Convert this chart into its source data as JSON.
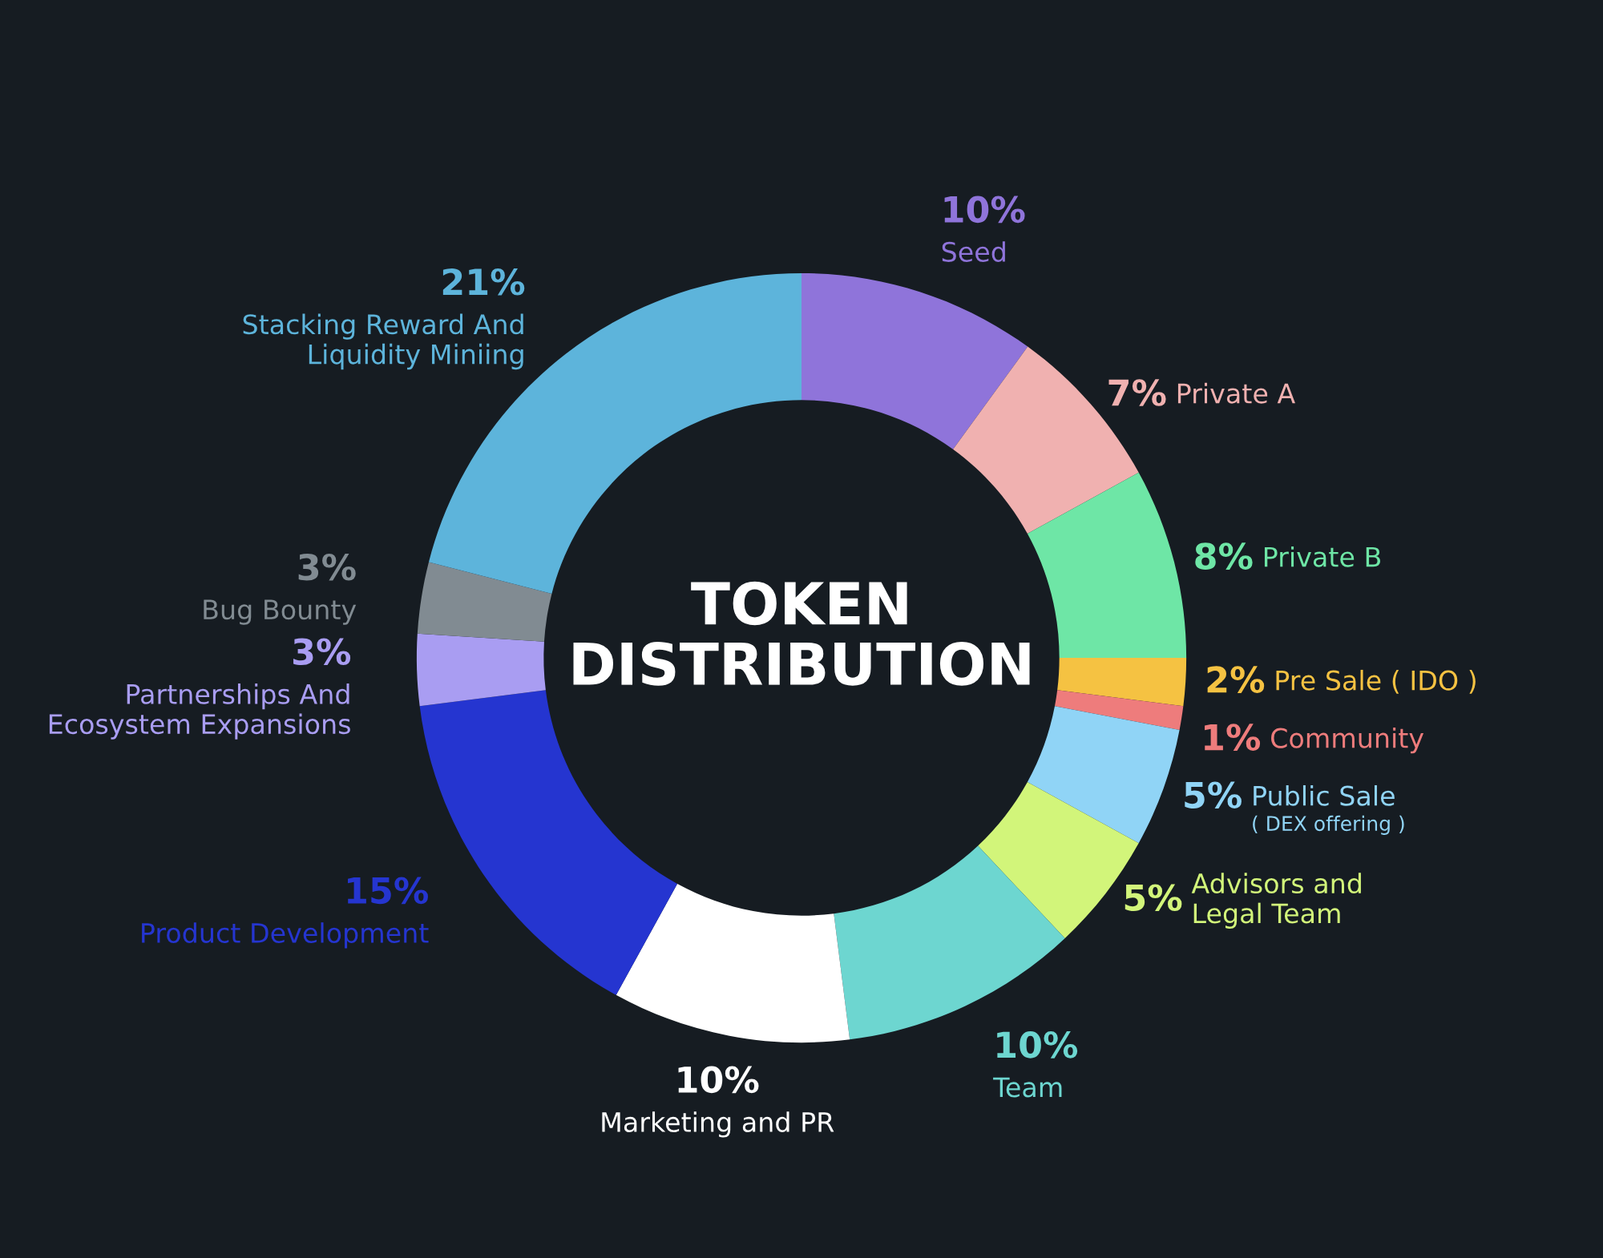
{
  "chart_data": {
    "type": "donut",
    "title": "TOKEN\nDISTRIBUTION",
    "categories": [
      "Seed",
      "Private A",
      "Private B",
      "Pre Sale ( IDO )",
      "Community",
      "Public Sale",
      "Advisors and\nLegal Team",
      "Team",
      "Marketing and PR",
      "Product Development",
      "Partnerships And\nEcosystem Expansions",
      "Bug Bounty",
      "Stacking Reward And\nLiquidity Miniing"
    ],
    "values": [
      10,
      7,
      8,
      2,
      1,
      5,
      5,
      10,
      10,
      15,
      3,
      3,
      21
    ],
    "colors": [
      "#8f74da",
      "#f0b1b0",
      "#6ee6a6",
      "#f5c242",
      "#ee7c7c",
      "#90d4f6",
      "#d2f57a",
      "#6dd6d0",
      "#ffffff",
      "#2535d0",
      "#a99df2",
      "#818b92",
      "#5db4db"
    ],
    "value_labels": [
      "10%",
      "7%",
      "8%",
      "2%",
      "1%",
      "5%",
      "5%",
      "10%",
      "10%",
      "15%",
      "3%",
      "3%",
      "21%"
    ],
    "annotations": [
      {
        "text": "( DEX offering )",
        "x": "Public Sale"
      }
    ]
  }
}
